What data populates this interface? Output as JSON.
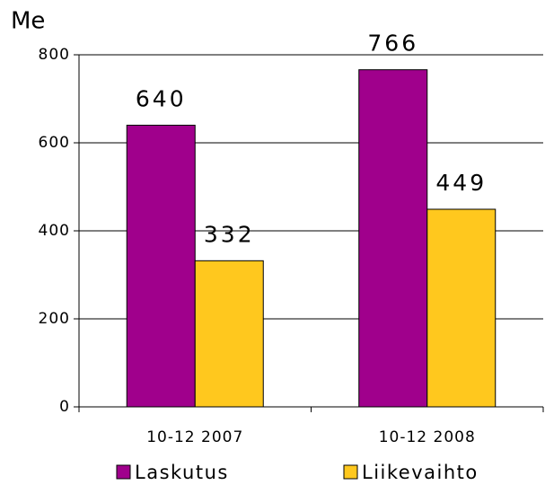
{
  "chart_data": {
    "type": "bar",
    "y_label": "Me",
    "categories": [
      "10-12 2007",
      "10-12 2008"
    ],
    "series": [
      {
        "name": "Laskutus",
        "color": "#a0008c",
        "values": [
          640,
          766
        ]
      },
      {
        "name": "Liikevaihto",
        "color": "#ffc81e",
        "values": [
          332,
          449
        ]
      }
    ],
    "ylim": [
      0,
      800
    ],
    "yticks": [
      0,
      200,
      400,
      600,
      800
    ],
    "grid": true,
    "legend": "bottom"
  }
}
